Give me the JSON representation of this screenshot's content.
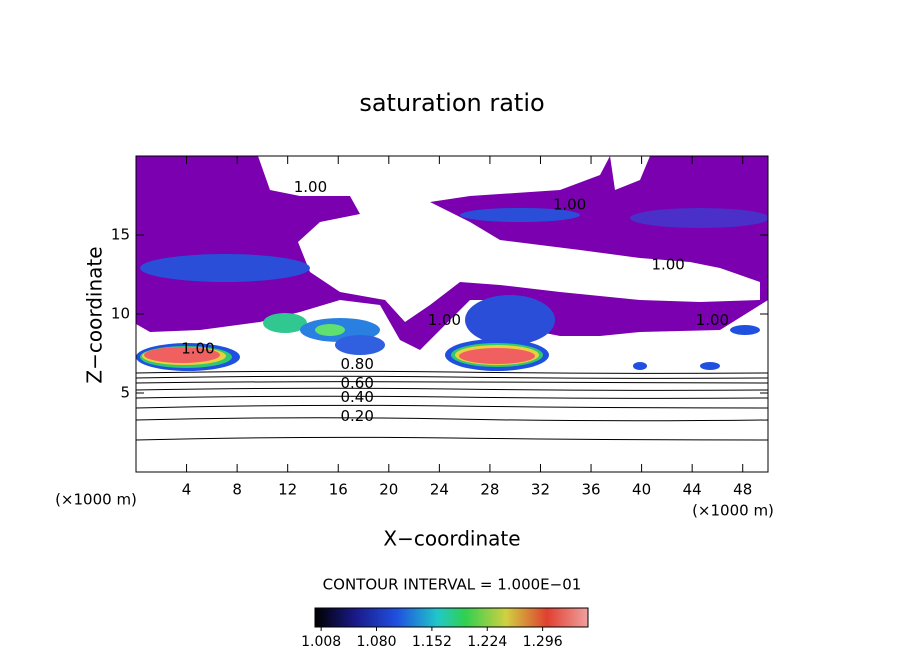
{
  "chart_data": {
    "type": "contour",
    "title": "saturation ratio",
    "x_label": "X−coordinate",
    "y_label": "Z−coordinate",
    "x_unit_label": "(×1000 m)",
    "y_unit_label": "(×1000 m)",
    "xlim": [
      0,
      50
    ],
    "xticks": [
      4,
      8,
      12,
      16,
      20,
      24,
      28,
      32,
      36,
      40,
      44,
      48
    ],
    "ylim": [
      0,
      20
    ],
    "yticks": [
      5,
      10,
      15
    ],
    "contour_interval": "CONTOUR INTERVAL = 1.000E−01",
    "contour_labels": [
      {
        "text": "1.00",
        "x": 13.8,
        "y": 18.0
      },
      {
        "text": "1.00",
        "x": 34.3,
        "y": 16.9
      },
      {
        "text": "1.00",
        "x": 42.1,
        "y": 13.1
      },
      {
        "text": "1.00",
        "x": 45.6,
        "y": 9.6
      },
      {
        "text": "1.00",
        "x": 4.9,
        "y": 7.8
      },
      {
        "text": "1.00",
        "x": 24.4,
        "y": 9.6
      },
      {
        "text": "0.80",
        "x": 17.5,
        "y": 6.8
      },
      {
        "text": "0.60",
        "x": 17.5,
        "y": 5.6
      },
      {
        "text": "0.40",
        "x": 17.5,
        "y": 4.7
      },
      {
        "text": "0.20",
        "x": 17.5,
        "y": 3.5
      }
    ],
    "colorbar": {
      "clim": [
        1.0,
        1.355
      ],
      "ticks": [
        1.008,
        {
          "value": 1.08,
          "label": "1.080"
        },
        1.152,
        1.224,
        1.296
      ]
    }
  }
}
